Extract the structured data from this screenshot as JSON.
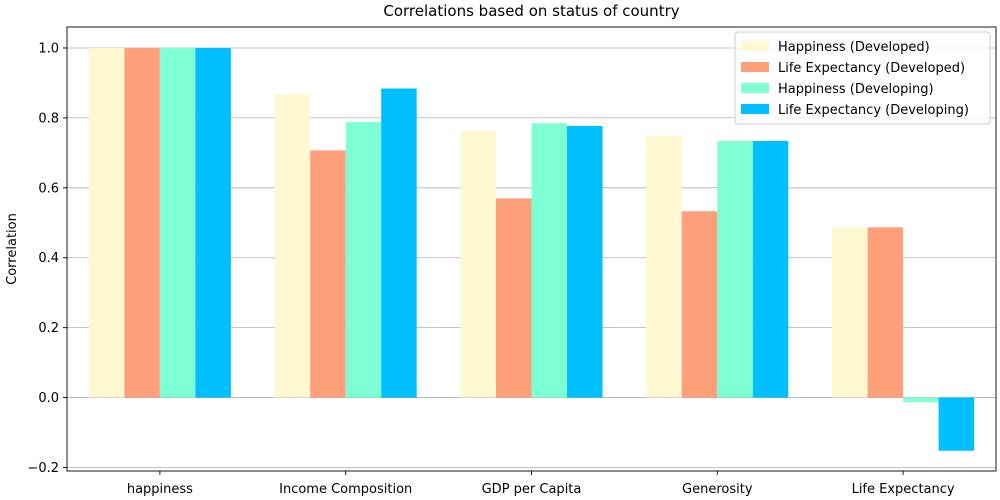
{
  "chart_data": {
    "type": "bar",
    "title": "Correlations based on status of country",
    "xlabel": "",
    "ylabel": "Correlation",
    "ylim": [
      -0.21,
      1.06
    ],
    "yticks": [
      -0.2,
      0.0,
      0.2,
      0.4,
      0.6,
      0.8,
      1.0
    ],
    "ytick_labels": [
      "−0.2",
      "0.0",
      "0.2",
      "0.4",
      "0.6",
      "0.8",
      "1.0"
    ],
    "grid": "horizontal",
    "legend_position": "top-right",
    "categories": [
      "happiness",
      "Income Composition",
      "GDP per Capita",
      "Generosity",
      "Life Expectancy"
    ],
    "series": [
      {
        "name": "Happiness (Developed)",
        "color": "#fff8d0",
        "values": [
          1.0,
          0.868,
          0.763,
          0.748,
          0.487
        ]
      },
      {
        "name": "Life Expectancy (Developed)",
        "color": "#ffa07a",
        "values": [
          1.0,
          0.707,
          0.57,
          0.533,
          0.487
        ]
      },
      {
        "name": "Happiness (Developing)",
        "color": "#7fffd4",
        "values": [
          1.0,
          0.788,
          0.785,
          0.734,
          -0.013
        ]
      },
      {
        "name": "Life Expectancy (Developing)",
        "color": "#00bfff",
        "values": [
          1.0,
          0.884,
          0.777,
          0.734,
          -0.152
        ]
      }
    ]
  }
}
